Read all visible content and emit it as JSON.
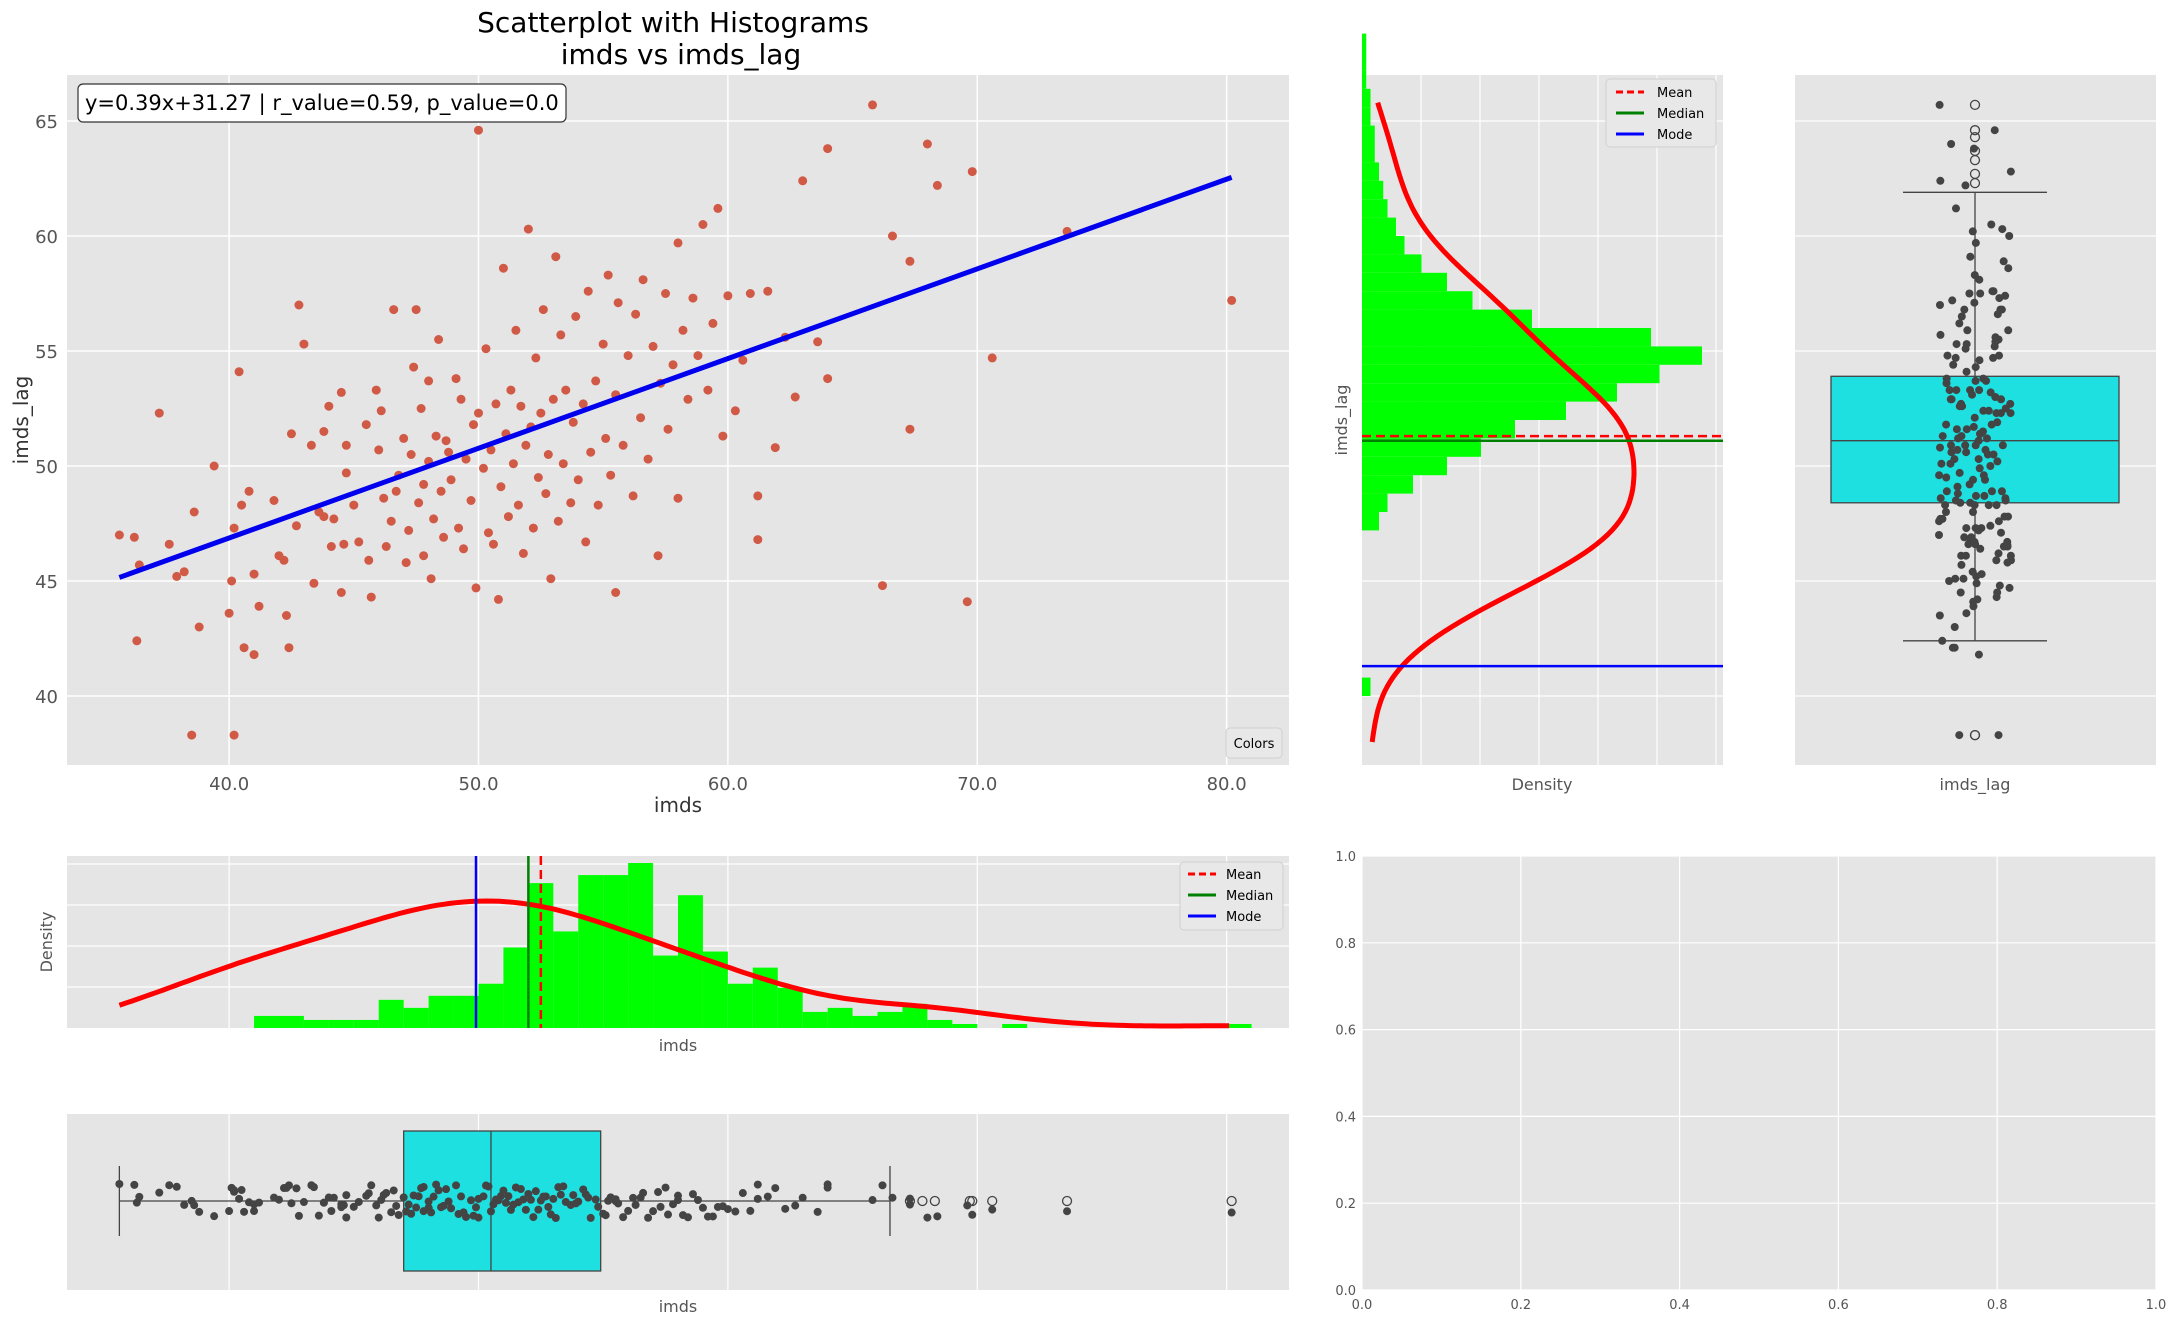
{
  "figure": {
    "title_line1": "Scatterplot with Histograms",
    "title_line2": "imds vs imds_lag"
  },
  "chart_data": [
    {
      "id": "scatter",
      "type": "scatter",
      "xlabel": "imds",
      "ylabel": "imds_lag",
      "xlim": [
        33.5,
        82.5
      ],
      "ylim": [
        37.0,
        67.0
      ],
      "xticks": [
        "40.0",
        "50.0",
        "60.0",
        "70.0",
        "80.0"
      ],
      "yticks": [
        "40",
        "45",
        "50",
        "55",
        "60",
        "65"
      ],
      "xtick_values": [
        40,
        50,
        60,
        70,
        80
      ],
      "ytick_values": [
        40,
        45,
        50,
        55,
        60,
        65
      ],
      "annotation": "y=0.39x+31.27 | r_value=0.59, p_value=0.0",
      "legend_label": "Colors",
      "fit": {
        "slope": 0.39,
        "intercept": 31.27,
        "x_range": [
          35.6,
          80.2
        ],
        "color": "#0000ee"
      },
      "point_color": "#d05a46",
      "points": [
        [
          35.6,
          47
        ],
        [
          36.2,
          46.9
        ],
        [
          36.4,
          45.7
        ],
        [
          36.3,
          42.4
        ],
        [
          37.2,
          52.3
        ],
        [
          37.6,
          46.6
        ],
        [
          37.9,
          45.2
        ],
        [
          38.2,
          45.4
        ],
        [
          38.6,
          48
        ],
        [
          38.5,
          38.3
        ],
        [
          38.8,
          43
        ],
        [
          39.4,
          50
        ],
        [
          40.1,
          45
        ],
        [
          40,
          43.6
        ],
        [
          40.2,
          47.3
        ],
        [
          40.2,
          38.3
        ],
        [
          40.4,
          54.1
        ],
        [
          40.5,
          48.3
        ],
        [
          40.6,
          42.1
        ],
        [
          40.8,
          48.9
        ],
        [
          41,
          45.3
        ],
        [
          41,
          41.8
        ],
        [
          41.2,
          43.9
        ],
        [
          41.8,
          48.5
        ],
        [
          42,
          46.1
        ],
        [
          42.2,
          45.9
        ],
        [
          42.3,
          43.5
        ],
        [
          42.4,
          42.1
        ],
        [
          42.5,
          51.4
        ],
        [
          42.7,
          47.4
        ],
        [
          42.8,
          57
        ],
        [
          43,
          55.3
        ],
        [
          43.3,
          50.9
        ],
        [
          43.4,
          44.9
        ],
        [
          43.6,
          48
        ],
        [
          43.8,
          51.5
        ],
        [
          43.8,
          47.8
        ],
        [
          44,
          52.6
        ],
        [
          44.1,
          46.5
        ],
        [
          44.2,
          47.7
        ],
        [
          44.5,
          53.2
        ],
        [
          44.5,
          44.5
        ],
        [
          44.6,
          46.6
        ],
        [
          44.7,
          49.7
        ],
        [
          44.7,
          50.9
        ],
        [
          45,
          48.3
        ],
        [
          45.2,
          46.7
        ],
        [
          45.5,
          51.8
        ],
        [
          45.6,
          45.9
        ],
        [
          45.7,
          44.3
        ],
        [
          45.9,
          53.3
        ],
        [
          46,
          50.7
        ],
        [
          46.1,
          52.4
        ],
        [
          46.2,
          48.6
        ],
        [
          46.3,
          46.5
        ],
        [
          46.5,
          47.6
        ],
        [
          46.6,
          56.8
        ],
        [
          46.7,
          48.9
        ],
        [
          46.8,
          49.6
        ],
        [
          47,
          51.2
        ],
        [
          47.1,
          45.8
        ],
        [
          47.2,
          47.2
        ],
        [
          47.3,
          50.5
        ],
        [
          47.4,
          54.3
        ],
        [
          47.5,
          56.8
        ],
        [
          47.6,
          48.4
        ],
        [
          47.7,
          52.5
        ],
        [
          47.8,
          46.1
        ],
        [
          47.8,
          49.2
        ],
        [
          48,
          50.2
        ],
        [
          48,
          53.7
        ],
        [
          48.1,
          45.1
        ],
        [
          48.2,
          47.7
        ],
        [
          48.3,
          51.3
        ],
        [
          48.4,
          55.5
        ],
        [
          48.5,
          48.9
        ],
        [
          48.6,
          46.9
        ],
        [
          48.7,
          51.1
        ],
        [
          48.8,
          50.6
        ],
        [
          48.9,
          49.4
        ],
        [
          49.1,
          53.8
        ],
        [
          49.2,
          47.3
        ],
        [
          49.3,
          52.9
        ],
        [
          49.4,
          46.4
        ],
        [
          49.5,
          50.3
        ],
        [
          49.7,
          48.5
        ],
        [
          49.8,
          51.8
        ],
        [
          49.9,
          44.7
        ],
        [
          50,
          52.3
        ],
        [
          50,
          64.6
        ],
        [
          50.2,
          49.9
        ],
        [
          50.3,
          55.1
        ],
        [
          50.4,
          47.1
        ],
        [
          50.5,
          50.7
        ],
        [
          50.6,
          46.6
        ],
        [
          50.7,
          52.7
        ],
        [
          50.8,
          44.2
        ],
        [
          50.9,
          49.1
        ],
        [
          51,
          58.6
        ],
        [
          51.1,
          51.4
        ],
        [
          51.2,
          47.8
        ],
        [
          51.3,
          53.3
        ],
        [
          51.4,
          50.1
        ],
        [
          51.5,
          55.9
        ],
        [
          51.6,
          48.3
        ],
        [
          51.7,
          52.6
        ],
        [
          51.8,
          46.2
        ],
        [
          51.9,
          50.9
        ],
        [
          52,
          60.3
        ],
        [
          52.1,
          51.7
        ],
        [
          52.2,
          47.3
        ],
        [
          52.3,
          54.7
        ],
        [
          52.4,
          49.5
        ],
        [
          52.5,
          52.3
        ],
        [
          52.6,
          56.8
        ],
        [
          52.7,
          48.8
        ],
        [
          52.8,
          50.5
        ],
        [
          52.9,
          45.1
        ],
        [
          53,
          52.9
        ],
        [
          53.1,
          59.1
        ],
        [
          53.2,
          47.6
        ],
        [
          53.3,
          55.7
        ],
        [
          53.4,
          50.1
        ],
        [
          53.5,
          53.3
        ],
        [
          53.7,
          48.4
        ],
        [
          53.8,
          51.9
        ],
        [
          53.9,
          56.5
        ],
        [
          54,
          49.4
        ],
        [
          54.2,
          52.7
        ],
        [
          54.3,
          46.7
        ],
        [
          54.4,
          57.6
        ],
        [
          54.5,
          50.6
        ],
        [
          54.7,
          53.7
        ],
        [
          54.8,
          48.3
        ],
        [
          55,
          55.3
        ],
        [
          55.1,
          51.2
        ],
        [
          55.2,
          58.3
        ],
        [
          55.3,
          49.6
        ],
        [
          55.5,
          53.1
        ],
        [
          55.5,
          44.5
        ],
        [
          55.6,
          57.1
        ],
        [
          55.8,
          50.9
        ],
        [
          56,
          54.8
        ],
        [
          56.2,
          48.7
        ],
        [
          56.3,
          56.6
        ],
        [
          56.5,
          52.1
        ],
        [
          56.6,
          58.1
        ],
        [
          56.8,
          50.3
        ],
        [
          57,
          55.2
        ],
        [
          57.2,
          46.1
        ],
        [
          57.3,
          53.6
        ],
        [
          57.5,
          57.5
        ],
        [
          57.6,
          51.6
        ],
        [
          57.8,
          54.4
        ],
        [
          58,
          59.7
        ],
        [
          58,
          48.6
        ],
        [
          58.2,
          55.9
        ],
        [
          58.4,
          52.9
        ],
        [
          58.6,
          57.3
        ],
        [
          58.8,
          54.8
        ],
        [
          59,
          60.5
        ],
        [
          59.2,
          53.3
        ],
        [
          59.4,
          56.2
        ],
        [
          59.6,
          61.2
        ],
        [
          59.8,
          51.3
        ],
        [
          60,
          57.4
        ],
        [
          60.3,
          52.4
        ],
        [
          60.6,
          54.6
        ],
        [
          60.9,
          57.5
        ],
        [
          61.2,
          48.7
        ],
        [
          61.2,
          46.8
        ],
        [
          61.6,
          57.6
        ],
        [
          61.9,
          50.8
        ],
        [
          62.3,
          55.6
        ],
        [
          62.7,
          53
        ],
        [
          63,
          62.4
        ],
        [
          63.6,
          55.4
        ],
        [
          64,
          63.8
        ],
        [
          64,
          53.8
        ],
        [
          65.8,
          65.7
        ],
        [
          66.2,
          44.8
        ],
        [
          66.6,
          60
        ],
        [
          67.3,
          58.9
        ],
        [
          67.3,
          51.6
        ],
        [
          68,
          64
        ],
        [
          68.4,
          62.2
        ],
        [
          69.6,
          44.1
        ],
        [
          69.8,
          62.8
        ],
        [
          70.6,
          54.7
        ],
        [
          73.6,
          60.2
        ],
        [
          80.2,
          57.2
        ]
      ]
    },
    {
      "id": "hist_y",
      "type": "bar",
      "orientation": "horizontal",
      "xlabel": "Density",
      "ylabel": "imds_lag",
      "ylim": [
        37.0,
        67.0
      ],
      "bin_start": 40.0,
      "bin_width": 0.8,
      "counts": [
        2,
        0,
        0,
        0,
        0,
        0,
        0,
        0,
        0,
        4,
        6,
        12,
        20,
        28,
        36,
        48,
        60,
        70,
        80,
        68,
        40,
        26,
        20,
        14,
        10,
        8,
        6,
        5,
        4,
        3,
        3,
        2,
        2,
        1,
        1,
        1
      ],
      "kde_color": "#ff0000",
      "bar_color": "#00ff00",
      "mean": 51.3,
      "median": 51.1,
      "mode": 41.3,
      "legend": [
        "Mean",
        "Median",
        "Mode"
      ],
      "legend_colors": [
        "#ff0000",
        "#008000",
        "#0000ff"
      ]
    },
    {
      "id": "box_y",
      "type": "box",
      "orientation": "vertical",
      "xlabel": "imds_lag",
      "ylim": [
        37.0,
        67.0
      ],
      "q1": 48.4,
      "median": 51.1,
      "q3": 53.9,
      "whisker_low": 42.4,
      "whisker_high": 61.9,
      "outliers": [
        38.3,
        38.3,
        62.3,
        62.7,
        63.3,
        63.7,
        64.3,
        64.6,
        65.7
      ],
      "box_color": "#1ee0e0"
    },
    {
      "id": "hist_x",
      "type": "bar",
      "xlabel": "imds",
      "ylabel": "Density",
      "xlim": [
        33.5,
        82.5
      ],
      "bin_start": 36.0,
      "bin_width": 1.0,
      "counts": [
        0,
        0,
        0,
        0,
        0,
        3,
        3,
        2,
        2,
        2,
        7,
        5,
        8,
        8,
        11,
        20,
        36,
        24,
        38,
        38,
        41,
        18,
        33,
        19,
        11,
        15,
        10,
        4,
        5,
        3,
        4,
        6,
        2,
        1,
        0,
        1,
        0,
        0,
        0,
        0,
        0,
        0,
        0,
        0,
        1
      ],
      "kde_color": "#ff0000",
      "bar_color": "#00ff00",
      "mean": 52.5,
      "median": 52.0,
      "mode": 49.9,
      "legend": [
        "Mean",
        "Median",
        "Mode"
      ],
      "legend_colors": [
        "#ff0000",
        "#008000",
        "#0000ff"
      ]
    },
    {
      "id": "box_x",
      "type": "box",
      "orientation": "horizontal",
      "xlabel": "imds",
      "xlim": [
        33.5,
        82.5
      ],
      "q1": 47.0,
      "median": 50.5,
      "q3": 54.9,
      "whisker_low": 35.6,
      "whisker_high": 66.5,
      "outliers": [
        67.3,
        67.8,
        68.3,
        69.7,
        69.8,
        70.6,
        73.6,
        80.2
      ],
      "box_color": "#1ee0e0"
    },
    {
      "id": "empty",
      "type": "scatter",
      "xlim": [
        0.0,
        1.0
      ],
      "ylim": [
        0.0,
        1.0
      ],
      "xticks": [
        "0.0",
        "0.2",
        "0.4",
        "0.6",
        "0.8",
        "1.0"
      ],
      "yticks": [
        "0.0",
        "0.2",
        "0.4",
        "0.6",
        "0.8",
        "1.0"
      ]
    }
  ]
}
